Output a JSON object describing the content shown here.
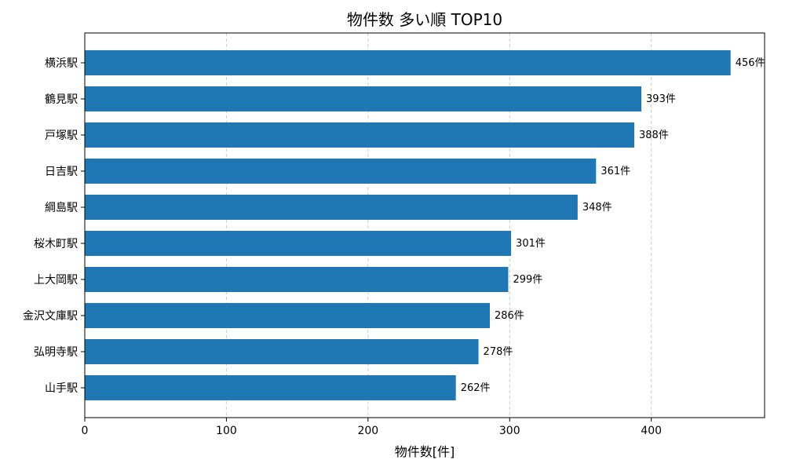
{
  "chart_data": {
    "type": "bar",
    "orientation": "horizontal",
    "title": "物件数 多い順 TOP10",
    "xlabel": "物件数[件]",
    "ylabel": "",
    "categories": [
      "横浜駅",
      "鶴見駅",
      "戸塚駅",
      "日吉駅",
      "綱島駅",
      "桜木町駅",
      "上大岡駅",
      "金沢文庫駅",
      "弘明寺駅",
      "山手駅"
    ],
    "values": [
      456,
      393,
      388,
      361,
      348,
      301,
      299,
      286,
      278,
      262
    ],
    "data_labels": [
      "456件",
      "393件",
      "388件",
      "361件",
      "348件",
      "301件",
      "299件",
      "286件",
      "278件",
      "262件"
    ],
    "xlim": [
      0,
      480
    ],
    "xticks": [
      0,
      100,
      200,
      300,
      400
    ],
    "xtick_labels": [
      "0",
      "100",
      "200",
      "300",
      "400"
    ],
    "grid": "x-dashed",
    "bar_color": "#1f77b4"
  }
}
